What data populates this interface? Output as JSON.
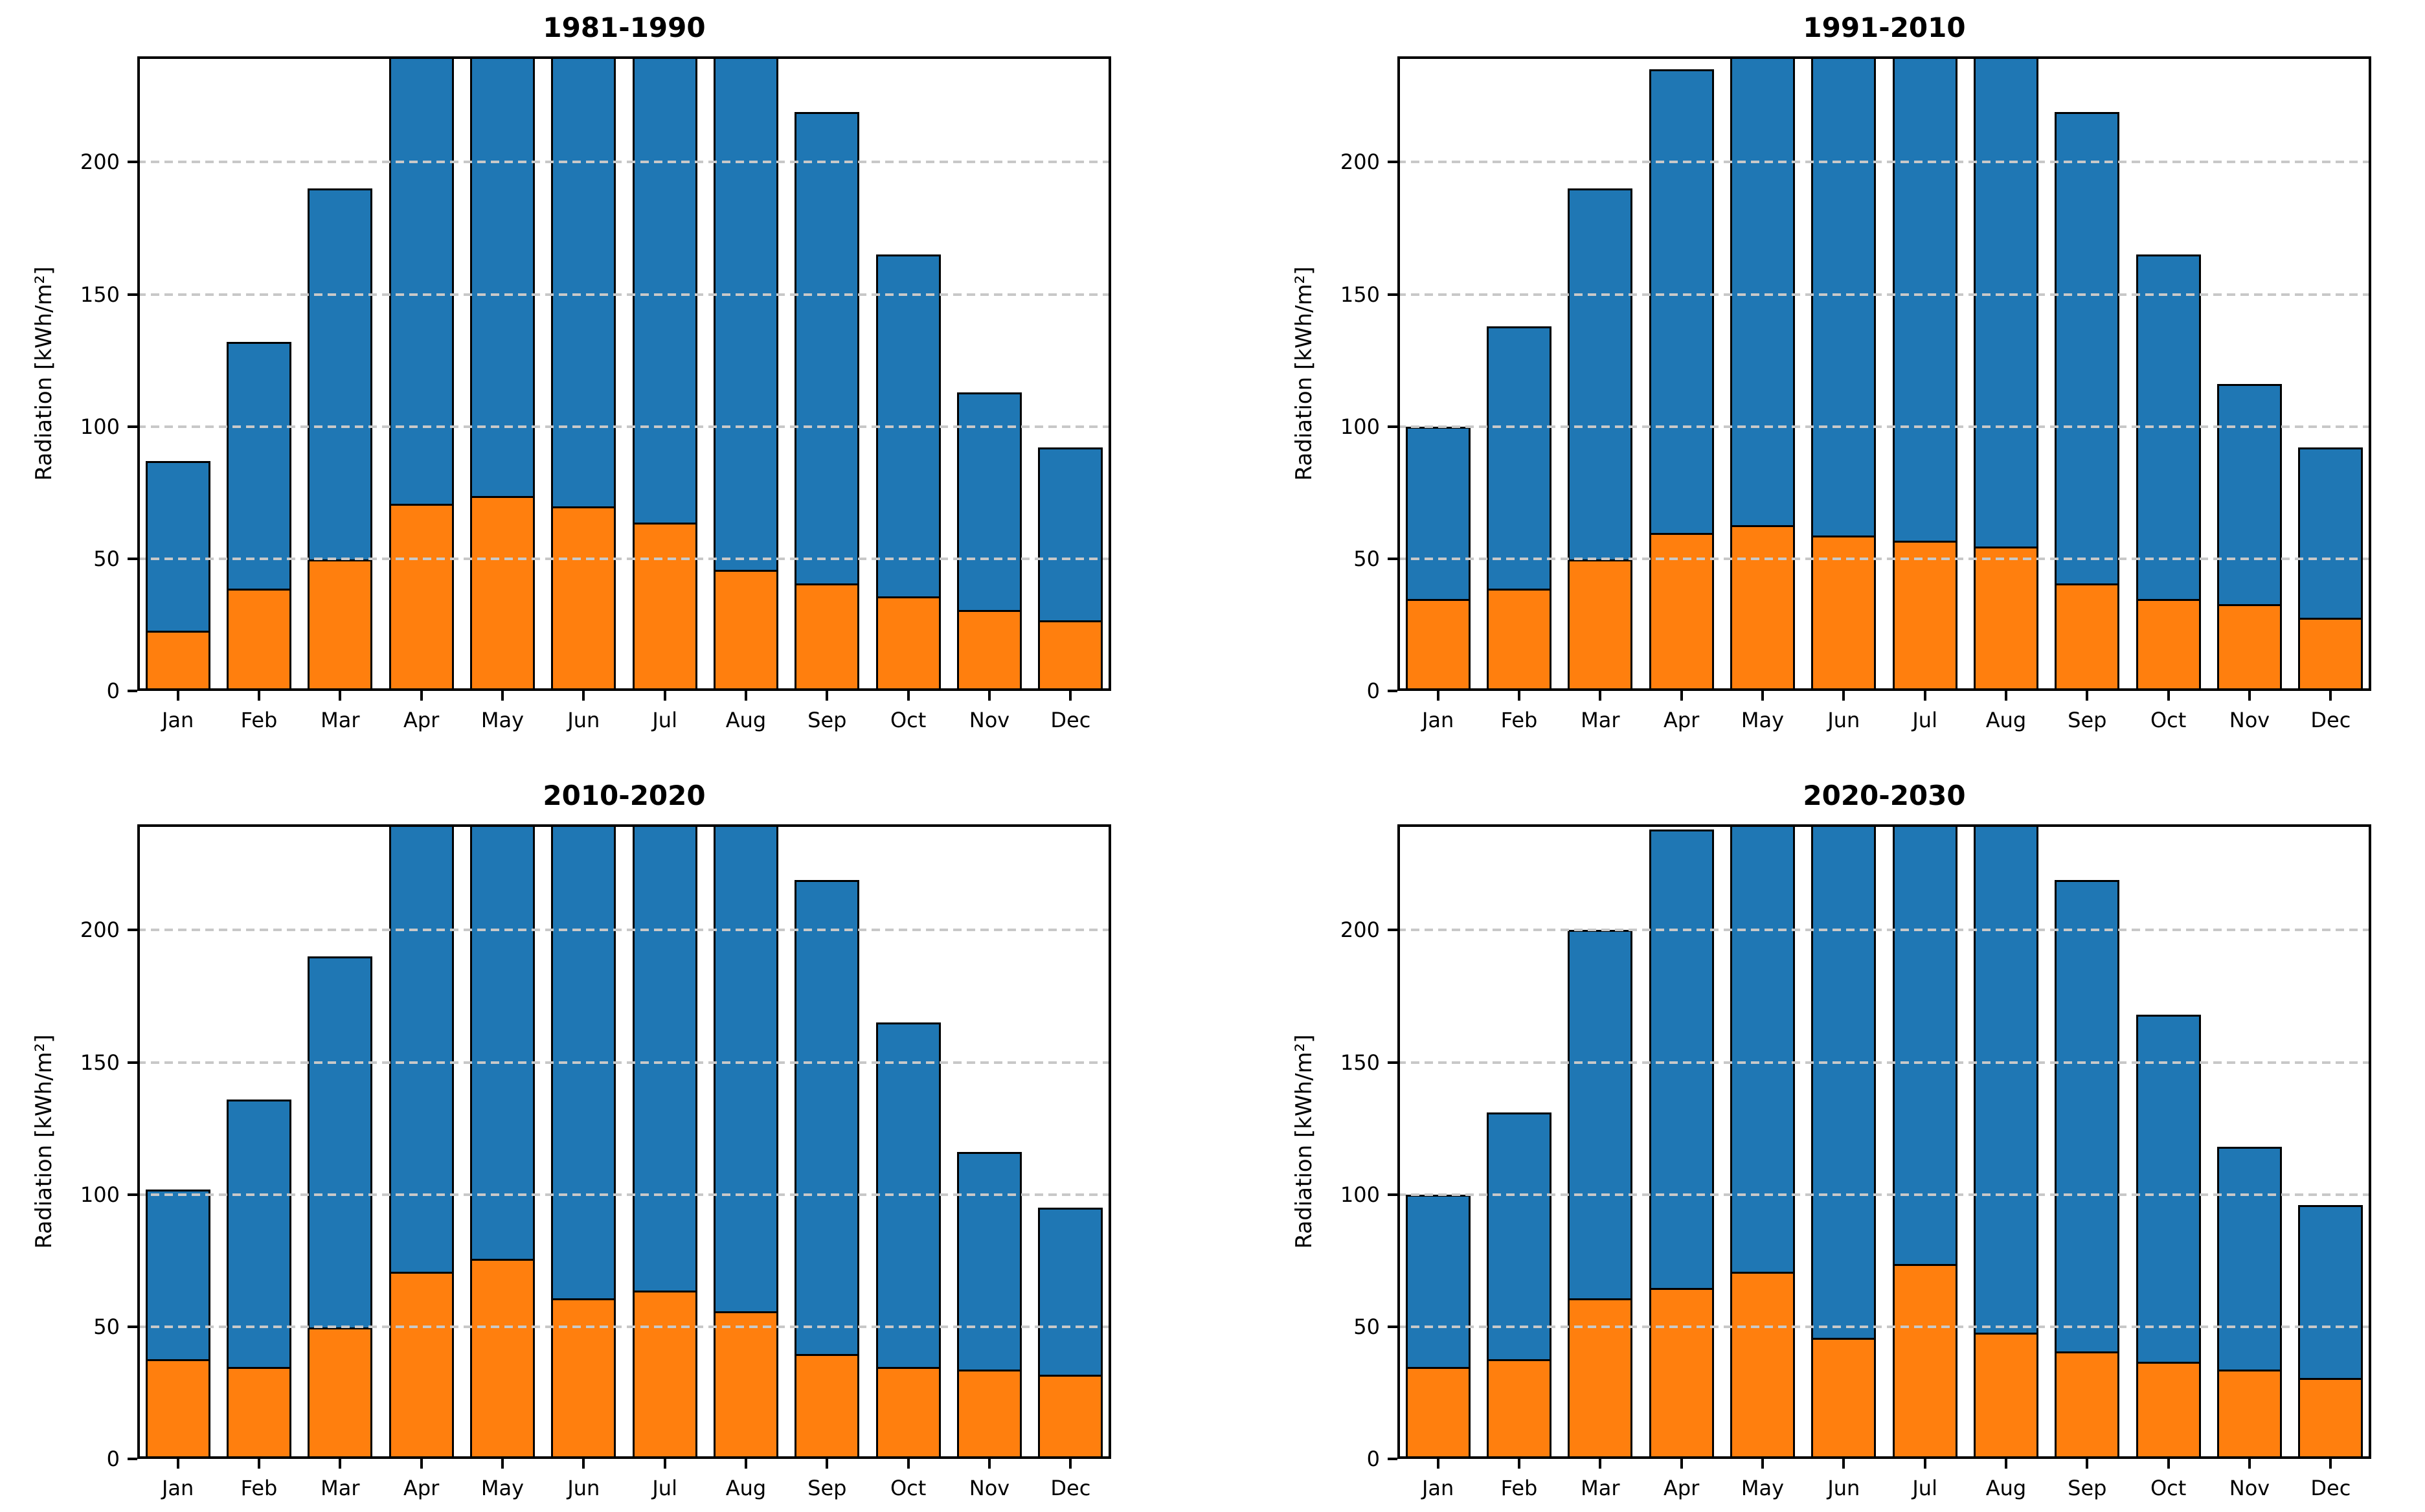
{
  "figure": {
    "background": "#ffffff",
    "bar_fill_bottom": "#ff7f0e",
    "bar_fill_top": "#1f77b4",
    "bar_edge": "#000000",
    "grid_color": "#c8c8c8",
    "grid_style": "dashed"
  },
  "chart_data": {
    "type": "bar",
    "stacked": true,
    "grid": "on",
    "legend": "none",
    "months": [
      "Jan",
      "Feb",
      "Mar",
      "Apr",
      "May",
      "Jun",
      "Jul",
      "Aug",
      "Sep",
      "Oct",
      "Nov",
      "Dec"
    ],
    "ylim": [
      0,
      240
    ],
    "yticks": [
      0,
      50,
      100,
      150,
      200
    ],
    "ytick_labels": [
      "0",
      "50",
      "100",
      "150",
      "200"
    ],
    "ylabel": "Radiation [kWh/m²]",
    "note_units": "kWh/m2 per month; bars above 240 are clipped at the axis top",
    "charts": [
      {
        "title": "1981-1990",
        "orange_values": [
          22,
          38,
          49,
          70,
          73,
          69,
          63,
          45,
          40,
          35,
          30,
          26
        ],
        "total_values": [
          87,
          132,
          190,
          null,
          null,
          null,
          null,
          null,
          219,
          165,
          113,
          92
        ]
      },
      {
        "title": "1991-2010",
        "orange_values": [
          34,
          38,
          49,
          59,
          62,
          58,
          56,
          54,
          40,
          34,
          32,
          27
        ],
        "total_values": [
          100,
          138,
          190,
          235,
          null,
          null,
          null,
          null,
          219,
          165,
          116,
          92
        ]
      },
      {
        "title": "2010-2020",
        "orange_values": [
          37,
          34,
          49,
          70,
          75,
          60,
          63,
          55,
          39,
          34,
          33,
          31
        ],
        "total_values": [
          102,
          136,
          190,
          null,
          null,
          null,
          null,
          null,
          219,
          165,
          116,
          95
        ]
      },
      {
        "title": "2020-2030",
        "orange_values": [
          34,
          37,
          60,
          64,
          70,
          45,
          73,
          47,
          40,
          36,
          33,
          30
        ],
        "total_values": [
          100,
          131,
          200,
          238,
          null,
          null,
          null,
          null,
          219,
          168,
          118,
          96
        ]
      }
    ]
  }
}
